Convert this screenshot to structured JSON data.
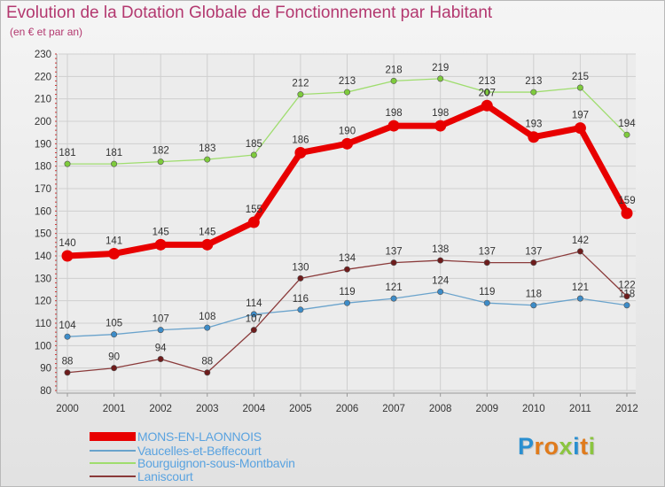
{
  "title": "Evolution de la Dotation Globale de Fonctionnement par Habitant",
  "subtitle": "(en € et par an)",
  "brand": {
    "text": "Proxiti",
    "letters": [
      {
        "char": "P",
        "color": "#2a8fd0"
      },
      {
        "char": "r",
        "color": "#e07b1c"
      },
      {
        "char": "o",
        "color": "#e07b1c"
      },
      {
        "char": "x",
        "color": "#8bc53f"
      },
      {
        "char": "i",
        "color": "#2a8fd0"
      },
      {
        "char": "t",
        "color": "#e07b1c"
      },
      {
        "char": "i",
        "color": "#8bc53f"
      }
    ]
  },
  "colors": {
    "title": "#b3386f",
    "axis_text": "#333333",
    "grid": "#cfcfcf",
    "tick_marks": "#cc3333"
  },
  "chart_data": {
    "type": "line",
    "title": "Evolution de la Dotation Globale de Fonctionnement par Habitant",
    "subtitle": "(en € et par an)",
    "xlabel": "",
    "ylabel": "",
    "ylim": [
      80,
      230
    ],
    "yticks": [
      80,
      90,
      100,
      110,
      120,
      130,
      140,
      150,
      160,
      170,
      180,
      190,
      200,
      210,
      220,
      230
    ],
    "grid": true,
    "legend_position": "bottom-left",
    "x": [
      "2000",
      "2001",
      "2002",
      "2003",
      "2004",
      "2005",
      "2006",
      "2007",
      "2008",
      "2009",
      "2010",
      "2011",
      "2012"
    ],
    "series": [
      {
        "name": "MONS-EN-LAONNOIS",
        "color": "#e80000",
        "emphasis": true,
        "values": [
          140,
          141,
          145,
          145,
          155,
          186,
          190,
          198,
          198,
          207,
          193,
          197,
          159
        ]
      },
      {
        "name": "Vaucelles-et-Beffecourt",
        "color": "#6aa3cc",
        "point_color": "#3d8cc8",
        "emphasis": false,
        "values": [
          104,
          105,
          107,
          108,
          114,
          116,
          119,
          121,
          124,
          119,
          118,
          121,
          118
        ]
      },
      {
        "name": "Bourguignon-sous-Montbavin",
        "color": "#9fdd6e",
        "point_color": "#7ecb3c",
        "emphasis": false,
        "values": [
          181,
          181,
          182,
          183,
          185,
          212,
          213,
          218,
          219,
          213,
          213,
          215,
          194
        ]
      },
      {
        "name": "Laniscourt",
        "color": "#8a3a3a",
        "point_color": "#6e1c1c",
        "emphasis": false,
        "values": [
          88,
          90,
          94,
          88,
          107,
          130,
          134,
          137,
          138,
          137,
          137,
          142,
          122
        ]
      }
    ]
  }
}
